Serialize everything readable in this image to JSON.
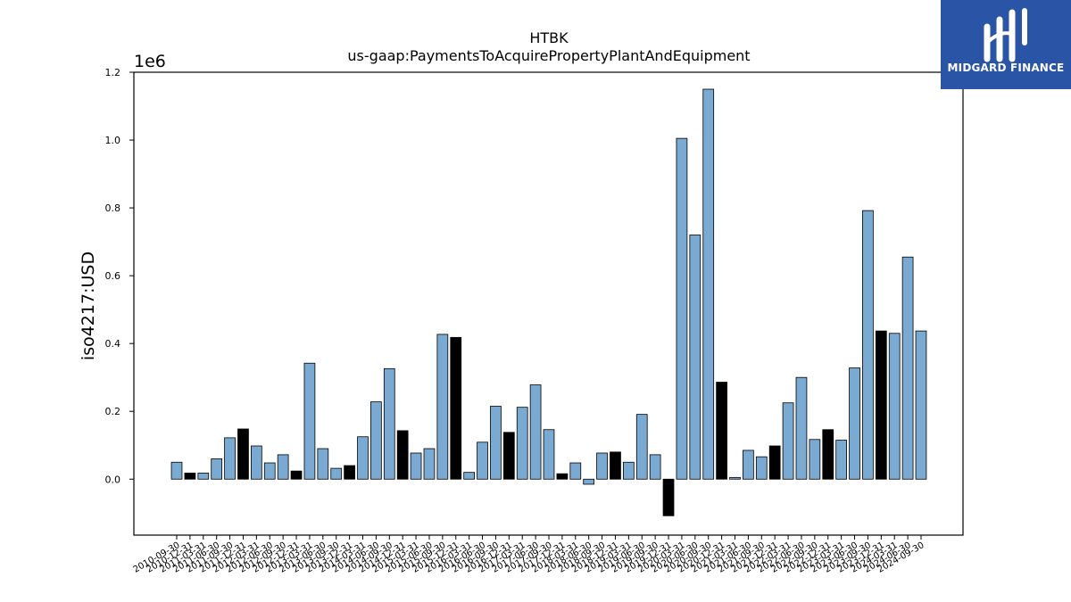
{
  "chart_data": {
    "type": "bar",
    "title": "HTBK",
    "subtitle": "us-gaap:PaymentsToAcquirePropertyPlantAndEquipment",
    "ylabel": "iso4217:USD",
    "xlabel": "",
    "y_multiplier": "1e6",
    "ylim": [
      -0.165,
      1.2
    ],
    "y_ticks": [
      "0.0",
      "0.2",
      "0.4",
      "0.6",
      "0.8",
      "1.0",
      "1.2"
    ],
    "grid": false,
    "colors": {
      "annual": "#000000",
      "quarter": "#7aa9d1",
      "edge": "#000000"
    },
    "categories": [
      "2010-09-30",
      "2010-12-31",
      "2011-03-31",
      "2011-06-30",
      "2011-09-30",
      "2011-12-31",
      "2012-03-31",
      "2012-06-30",
      "2012-09-30",
      "2012-12-31",
      "2013-03-31",
      "2013-06-30",
      "2013-09-30",
      "2013-12-31",
      "2014-03-31",
      "2014-06-30",
      "2014-09-30",
      "2014-12-31",
      "2015-03-31",
      "2015-06-30",
      "2015-09-30",
      "2015-12-31",
      "2016-03-31",
      "2016-06-30",
      "2016-09-30",
      "2016-12-31",
      "2017-03-31",
      "2017-06-30",
      "2017-09-30",
      "2017-12-31",
      "2018-03-31",
      "2018-06-30",
      "2018-09-30",
      "2018-12-31",
      "2019-03-31",
      "2019-06-30",
      "2019-09-30",
      "2019-12-31",
      "2020-03-31",
      "2020-06-30",
      "2020-09-30",
      "2020-12-31",
      "2021-03-31",
      "2021-06-30",
      "2021-09-30",
      "2021-12-31",
      "2022-03-31",
      "2022-06-30",
      "2022-09-30",
      "2022-12-31",
      "2023-03-31",
      "2023-06-30",
      "2023-09-30",
      "2023-12-31",
      "2024-03-31",
      "2024-06-30",
      "2024-09-30"
    ],
    "tick_labels": [
      "2010-09-30",
      "2010-12-31",
      "2011-03-31",
      "2011-06-30",
      "2011-09-30",
      "2011-12-31",
      "2012-03-31",
      "2012-06-30",
      "2012-09-30",
      "2012-12-31",
      "2013-03-31",
      "2013-06-30",
      "2013-09-30",
      "2013-12-31",
      "2014-03-31",
      "2014-06-30",
      "2014-09-30",
      "2014-12-31",
      "2015-03-31",
      "2015-06-30",
      "2015-09-30",
      "2015-12-31",
      "2016-03-31",
      "2016-06-30",
      "2016-09-30",
      "2016-12-31",
      "2017-03-31",
      "2017-06-30",
      "2017-09-30",
      "2017-12-31",
      "2018-03-31",
      "2018-06-30",
      "2018-09-30",
      "2018-12-31",
      "2019-03-31",
      "2019-06-30",
      "2019-09-30",
      "2019-12-31",
      "2020-03-31",
      "2020-06-30",
      "2020-09-30",
      "2020-12-31",
      "2021-03-31",
      "2021-06-30",
      "2021-09-30",
      "2021-12-31",
      "2022-03-31",
      "2022-06-30",
      "2022-09-30",
      "2022-12-31",
      "2023-03-31",
      "2023-06-30",
      "2023-09-30",
      "2023-12-31",
      "2024-03-31",
      "2024-06-30",
      "2024-09-30"
    ],
    "values": [
      0.05,
      0.018,
      0.018,
      0.06,
      0.122,
      0.148,
      0.098,
      0.048,
      0.072,
      0.024,
      0.342,
      0.09,
      0.032,
      0.04,
      0.125,
      0.228,
      0.326,
      0.143,
      0.077,
      0.09,
      0.427,
      0.418,
      0.02,
      0.109,
      0.215,
      0.138,
      0.212,
      0.278,
      0.146,
      0.016,
      0.048,
      -0.015,
      0.077,
      0.08,
      0.05,
      0.191,
      0.072,
      -0.108,
      1.005,
      0.72,
      1.15,
      0.286,
      0.005,
      0.085,
      0.066,
      0.098,
      0.225,
      0.3,
      0.117,
      0.146,
      0.115,
      0.328,
      0.792,
      0.437,
      0.43,
      0.655,
      0.437
    ],
    "annual": [
      false,
      true,
      false,
      false,
      false,
      true,
      false,
      false,
      false,
      true,
      false,
      false,
      false,
      true,
      false,
      false,
      false,
      true,
      false,
      false,
      false,
      true,
      false,
      false,
      false,
      true,
      false,
      false,
      false,
      true,
      false,
      false,
      false,
      true,
      false,
      false,
      false,
      true,
      false,
      false,
      false,
      true,
      false,
      false,
      false,
      true,
      false,
      false,
      false,
      true,
      false,
      false,
      false,
      true,
      false,
      false,
      false
    ]
  },
  "logo": {
    "name": "MIDGARD FINANCE"
  }
}
